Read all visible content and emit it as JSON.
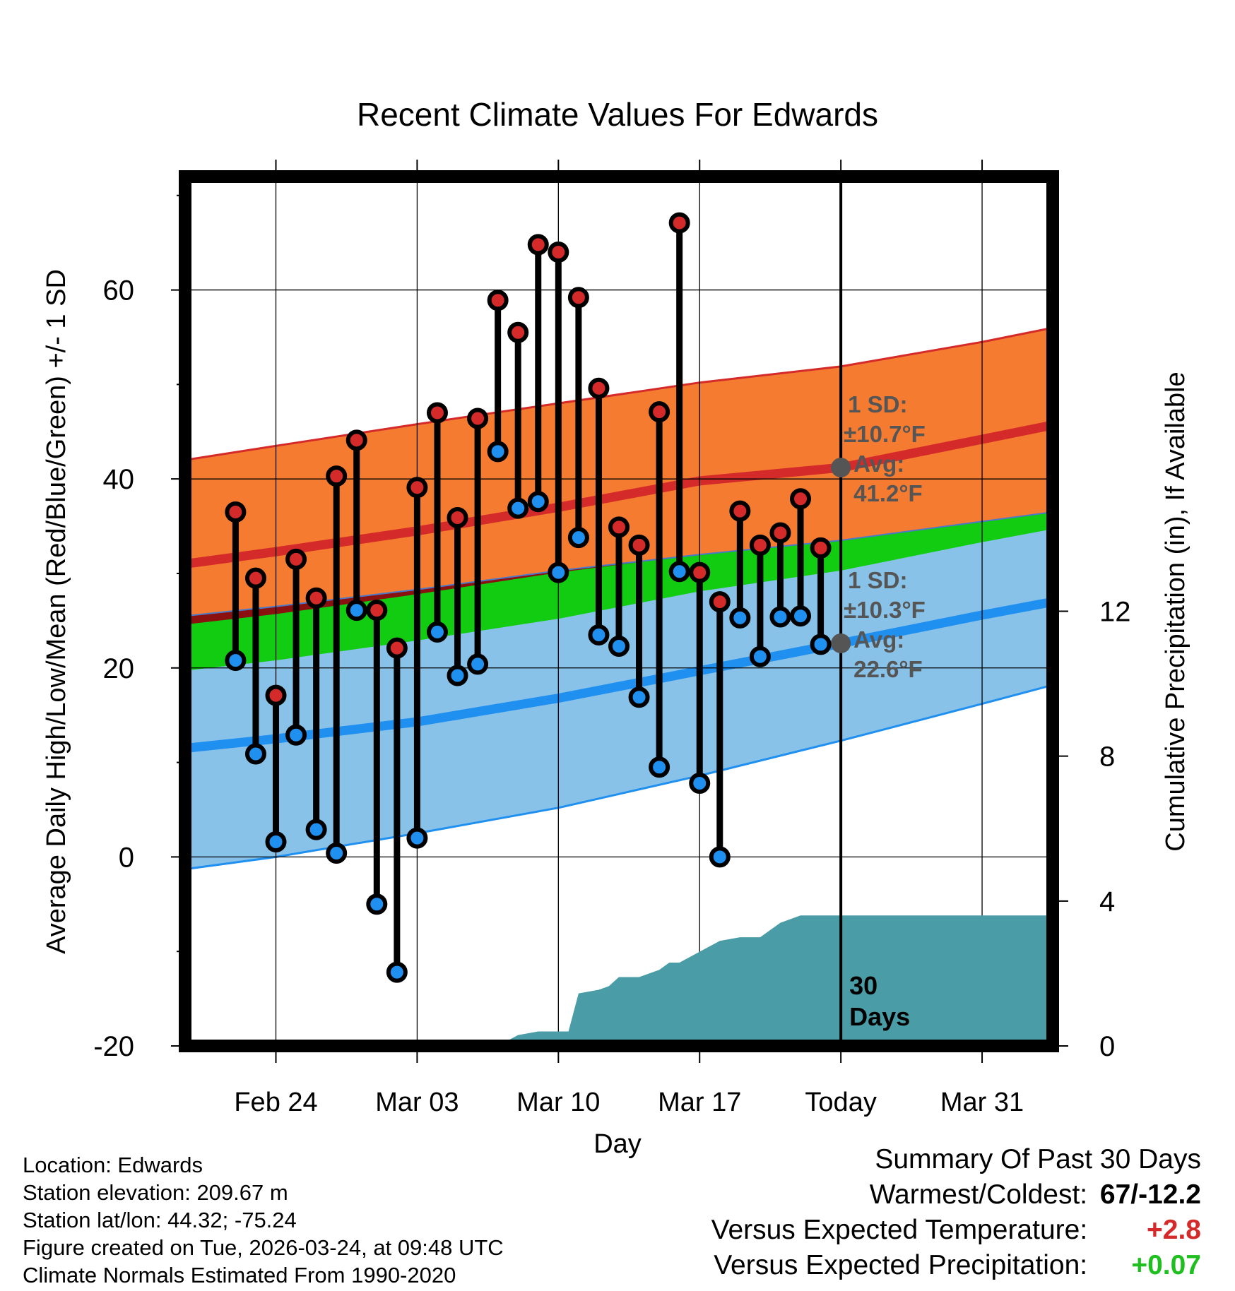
{
  "chart_data": {
    "type": "line",
    "title": "Recent Climate Values For Edwards",
    "xlabel": "Day",
    "ylabel_left": "Average Daily High/Low/Mean (Red/Blue/Green) +/- 1 SD",
    "ylabel_right": "Cumulative Precipitation (in), If Available",
    "ylim": [
      -20,
      72
    ],
    "y2lim": [
      0,
      24
    ],
    "xlim": [
      -4.5,
      38.5
    ],
    "yticks": [
      -20,
      0,
      20,
      40,
      60
    ],
    "yticks_minor": [
      -10,
      10,
      30,
      50,
      70
    ],
    "y2ticks": [
      0,
      4,
      8,
      12
    ],
    "xticks": [
      {
        "day": 0,
        "label": "Feb 24"
      },
      {
        "day": 7,
        "label": "Mar 03"
      },
      {
        "day": 14,
        "label": "Mar 10"
      },
      {
        "day": 21,
        "label": "Mar 17"
      },
      {
        "day": 28,
        "label": "Today"
      },
      {
        "day": 35,
        "label": "Mar 31"
      }
    ],
    "today_day": 28,
    "today_label": "30 Days",
    "normals": {
      "days": [
        -4.5,
        0,
        7,
        14,
        21,
        28,
        35,
        38.5
      ],
      "high_mean": [
        31.0,
        32.3,
        34.5,
        37.0,
        39.8,
        41.2,
        44.2,
        45.7
      ],
      "high_upper": [
        42.0,
        43.5,
        45.8,
        48.0,
        50.2,
        51.9,
        54.5,
        56.0
      ],
      "low_mean": [
        11.5,
        12.5,
        14.3,
        16.8,
        19.7,
        22.6,
        25.6,
        27.0
      ],
      "low_lower": [
        -1.3,
        0.0,
        2.5,
        5.2,
        8.6,
        12.3,
        16.2,
        18.2
      ],
      "mean_mean": [
        21.3,
        22.4,
        24.5,
        26.8,
        29.7,
        31.9,
        34.9,
        36.3
      ],
      "mean_upper": [
        25.5,
        26.5,
        28.3,
        30.3,
        32.0,
        33.5,
        35.5,
        36.5
      ]
    },
    "sd_annotations": [
      {
        "sd_label": "1 SD:",
        "sd_value": "±10.7°F",
        "avg_label": "Avg:",
        "avg_value": "41.2°F",
        "y": 41.2,
        "color": "#555555"
      },
      {
        "sd_label": "1 SD:",
        "sd_value": "±10.3°F",
        "avg_label": "Avg:",
        "avg_value": "22.6°F",
        "y": 22.6,
        "color": "#555555"
      }
    ],
    "series": [
      {
        "name": "Daily High",
        "color": "#d42a2a",
        "days": [
          -2,
          -1,
          0,
          1,
          2,
          3,
          4,
          5,
          6,
          7,
          8,
          9,
          10,
          11,
          12,
          13,
          14,
          15,
          16,
          17,
          18,
          19,
          20,
          21,
          22,
          23,
          24,
          25,
          26,
          27
        ],
        "values": [
          36.5,
          29.5,
          17.1,
          31.5,
          27.4,
          40.3,
          44.1,
          26.1,
          22.1,
          39.1,
          47.0,
          35.9,
          46.4,
          58.9,
          55.5,
          64.8,
          64.0,
          59.2,
          49.6,
          34.9,
          33.0,
          47.1,
          67.1,
          30.1,
          27.0,
          36.6,
          33.0,
          34.3,
          37.9,
          32.7
        ]
      },
      {
        "name": "Daily Low",
        "color": "#2090f0",
        "days": [
          -2,
          -1,
          0,
          1,
          2,
          3,
          4,
          5,
          6,
          7,
          8,
          9,
          10,
          11,
          12,
          13,
          14,
          15,
          16,
          17,
          18,
          19,
          20,
          21,
          22,
          23,
          24,
          25,
          26,
          27
        ],
        "values": [
          20.8,
          10.9,
          1.6,
          12.9,
          2.9,
          0.4,
          26.1,
          -5.0,
          -12.2,
          2.0,
          23.8,
          19.2,
          20.4,
          42.9,
          36.9,
          37.6,
          30.1,
          33.8,
          23.5,
          22.3,
          16.9,
          9.5,
          30.2,
          7.8,
          0.0,
          25.3,
          21.2,
          25.4,
          25.5,
          22.5
        ]
      },
      {
        "name": "Cumulative Precipitation",
        "color": "#4a9ca6",
        "days": [
          6,
          9,
          10,
          11,
          12,
          13,
          14,
          14.5,
          15,
          16,
          16.5,
          17,
          18,
          19,
          19.5,
          20,
          21,
          22,
          23,
          24,
          25,
          26,
          27,
          28,
          38.5
        ],
        "values": [
          0.0,
          0.0,
          0.0,
          0.0,
          0.3,
          0.4,
          0.4,
          0.4,
          1.45,
          1.55,
          1.65,
          1.9,
          1.9,
          2.1,
          2.3,
          2.3,
          2.6,
          2.9,
          3.0,
          3.0,
          3.4,
          3.6,
          3.6,
          3.6,
          3.6
        ]
      }
    ]
  },
  "meta": {
    "location": "Location: Edwards",
    "elevation": "Station elevation: 209.67 m",
    "latlon": "Station lat/lon: 44.32; -75.24",
    "created": "Figure created on Tue, 2026-03-24, at 09:48 UTC",
    "normals": "Climate Normals Estimated From 1990-2020"
  },
  "summary": {
    "title": "Summary Of Past 30 Days",
    "warm_label": "Warmest/Coldest:",
    "warm_value": "67/-12.2",
    "temp_label": "Versus Expected Temperature:",
    "temp_value": "+2.8",
    "temp_color": "#d42a2a",
    "precip_label": "Versus Expected Precipitation:",
    "precip_value": "+0.07",
    "precip_color": "#1fbf1f"
  }
}
